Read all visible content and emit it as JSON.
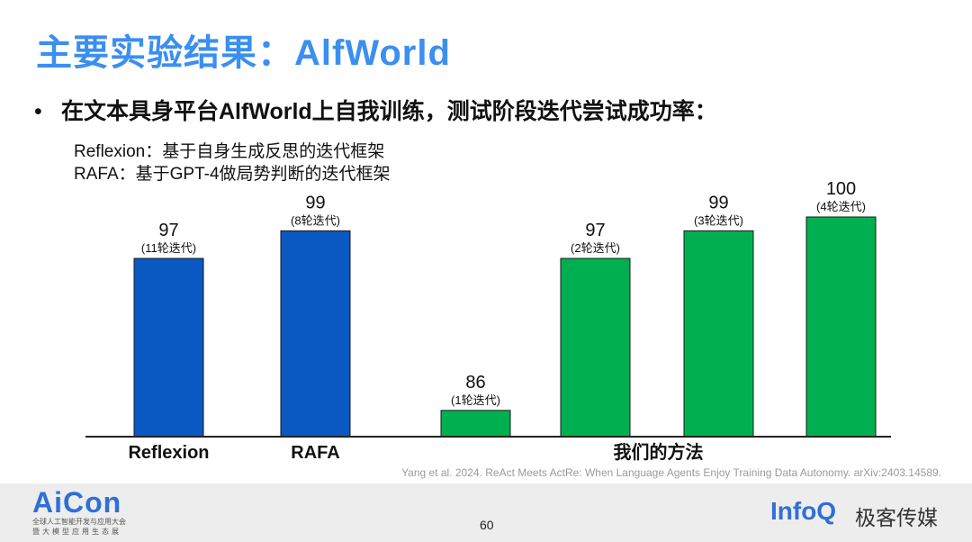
{
  "slide": {
    "title": "主要实验结果：AlfWorld",
    "bullet": "在文本具身平台AlfWorld上自我训练，测试阶段迭代尝试成功率：",
    "notes": [
      "Reflexion：基于自身生成反思的迭代框架",
      "RAFA：基于GPT-4做局势判断的迭代框架"
    ],
    "citation": "Yang et al. 2024. ReAct Meets ActRe: When Language Agents Enjoy Training Data Autonomy. arXiv:2403.14589.",
    "page_number": "60"
  },
  "footer": {
    "aicon_logo": "AiCon",
    "aicon_line1": "全球人工智能开发与应用大会",
    "aicon_line2": "暨大模型应用生态展",
    "infoq_logo": "InfoQ",
    "geek_media": "极客传媒"
  },
  "colors": {
    "title": "#3a8ff0",
    "baseline": "#0a58c2",
    "method": "#00b050",
    "method_edge": "#0a7d3a"
  },
  "chart_data": {
    "type": "bar",
    "ylim": [
      0,
      100
    ],
    "groups": [
      {
        "label": "Reflexion",
        "bars": [
          0
        ]
      },
      {
        "label": "RAFA",
        "bars": [
          1
        ]
      },
      {
        "label": "我们的方法",
        "bars": [
          2,
          3,
          4,
          5
        ]
      }
    ],
    "bars": [
      {
        "value": 97,
        "note": "(11轮迭代)",
        "color": "#0a58c2"
      },
      {
        "value": 99,
        "note": "(8轮迭代)",
        "color": "#0a58c2"
      },
      {
        "value": 86,
        "note": "(1轮迭代)",
        "color": "#00b050"
      },
      {
        "value": 97,
        "note": "(2轮迭代)",
        "color": "#00b050"
      },
      {
        "value": 99,
        "note": "(3轮迭代)",
        "color": "#00b050"
      },
      {
        "value": 100,
        "note": "(4轮迭代)",
        "color": "#00b050"
      }
    ]
  }
}
